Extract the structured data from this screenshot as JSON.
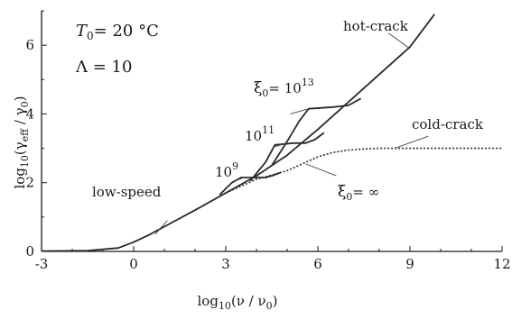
{
  "chart_data": {
    "type": "line",
    "xlabel": "log10(v / v0)",
    "ylabel": "log10(γeff / γ0)",
    "xlim": [
      -3,
      12
    ],
    "ylim": [
      0,
      7
    ],
    "xticks": [
      -3,
      0,
      3,
      6,
      9,
      12
    ],
    "yticks": [
      0,
      2,
      4,
      6
    ],
    "grid": false,
    "text": {
      "x_label_main": "log",
      "x_label_sub": "10",
      "x_label_rest": "(ν / ν",
      "x_label_sub2": "0",
      "x_label_end": ")",
      "y_label_main": "log",
      "y_label_sub": "10",
      "y_label_rest": "(γ",
      "y_label_sub2": "eff",
      "y_label_mid": " / γ",
      "y_label_sub3": "0",
      "y_label_end": ")",
      "param_T_main": "T",
      "param_T_sub": "0",
      "param_T_rest": "= 20 °C",
      "param_lambda": "Λ = 10",
      "hot_crack": "hot-crack",
      "cold_crack": "cold-crack",
      "low_speed": "low-speed",
      "xi_main": "ξ",
      "xi_sub": "0",
      "xi13_eq": "= 10",
      "xi13_sup": "13",
      "xi_inf_rest": "= ∞",
      "l11_base": "10",
      "l11_sup": "11",
      "l9_base": "10",
      "l9_sup": "9"
    },
    "series": [
      {
        "style": "solid",
        "x": [
          -3,
          -1.5,
          -0.5,
          0,
          0.5,
          1,
          2,
          3,
          4,
          5,
          6,
          7,
          8,
          9,
          9.8
        ],
        "y": [
          0.01,
          0.02,
          0.1,
          0.27,
          0.48,
          0.72,
          1.2,
          1.7,
          2.2,
          2.8,
          3.55,
          4.35,
          5.15,
          5.95,
          6.9
        ]
      },
      {
        "style": "dotted",
        "x": [
          3,
          4,
          5,
          5.5,
          6,
          6.5,
          7,
          7.5,
          8,
          9,
          10,
          11,
          12
        ],
        "y": [
          1.7,
          2.1,
          2.35,
          2.55,
          2.75,
          2.88,
          2.95,
          2.98,
          3.0,
          3.0,
          3.0,
          3.0,
          3.0
        ]
      },
      {
        "style": "solid",
        "x": [
          2.8,
          3.2,
          3.5,
          4.0,
          4.3,
          4.5,
          4.8
        ],
        "y": [
          1.65,
          2.0,
          2.15,
          2.15,
          2.15,
          2.2,
          2.3
        ]
      },
      {
        "style": "solid",
        "x": [
          3.8,
          4.3,
          4.6,
          5.2,
          5.6,
          5.9,
          6.2
        ],
        "y": [
          2.05,
          2.6,
          3.1,
          3.15,
          3.15,
          3.25,
          3.45
        ]
      },
      {
        "style": "solid",
        "x": [
          4.5,
          5.0,
          5.4,
          5.7,
          6.5,
          7.0,
          7.4
        ],
        "y": [
          2.5,
          3.2,
          3.8,
          4.15,
          4.2,
          4.25,
          4.45
        ]
      }
    ]
  }
}
